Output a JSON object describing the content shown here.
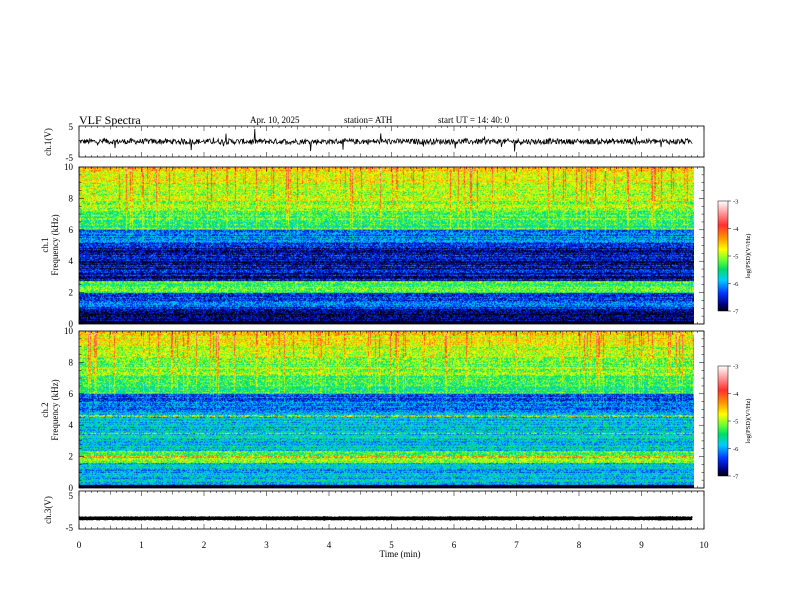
{
  "header": {
    "title": "VLF  Spectra",
    "date": "Apr. 10, 2025",
    "station": "station= ATH",
    "start": "start  UT  =   14: 40: 0"
  },
  "chart_data": [
    {
      "type": "line",
      "panel": "ch1-waveform",
      "ylabel": "ch.1(V)",
      "yticks": [
        "5",
        "-5"
      ],
      "ylim": [
        -5,
        5
      ],
      "xlim": [
        0,
        10
      ],
      "x_end": 9.82,
      "y_mean": 0.0,
      "color": "#000000"
    },
    {
      "type": "heatmap",
      "panel": "ch1-spectrogram",
      "ylabel": "ch.1\nFrequency (kHz)",
      "yticks": [
        "0",
        "2",
        "4",
        "6",
        "8",
        "10"
      ],
      "ylim": [
        0,
        10
      ],
      "xlim": [
        0,
        10
      ],
      "x_end": 9.82,
      "colorbar": {
        "label": "log(PSD)(V²/Hz)",
        "ticks": [
          "-3",
          "-4",
          "-5",
          "-6",
          "-7"
        ],
        "range": [
          -7,
          -3
        ]
      }
    },
    {
      "type": "heatmap",
      "panel": "ch2-spectrogram",
      "ylabel": "ch.2\nFrequency (kHz)",
      "yticks": [
        "0",
        "2",
        "4",
        "6",
        "8",
        "10"
      ],
      "ylim": [
        0,
        10
      ],
      "xlim": [
        0,
        10
      ],
      "x_end": 9.82,
      "colorbar": {
        "label": "log(PSD)(V²/Hz)",
        "ticks": [
          "-3",
          "-4",
          "-5",
          "-6",
          "-7"
        ],
        "range": [
          -7,
          -3
        ]
      }
    },
    {
      "type": "line",
      "panel": "ch3-waveform",
      "ylabel": "ch.3(V)",
      "yticks": [
        "5",
        "-5"
      ],
      "ylim": [
        -5,
        5
      ],
      "xlim": [
        0,
        10
      ],
      "x_end": 9.82,
      "y_mean": -2.2,
      "color": "#000000"
    }
  ],
  "xaxis": {
    "label": "Time  (min)",
    "ticks": [
      "0",
      "1",
      "2",
      "3",
      "4",
      "5",
      "6",
      "7",
      "8",
      "9",
      "10"
    ]
  }
}
